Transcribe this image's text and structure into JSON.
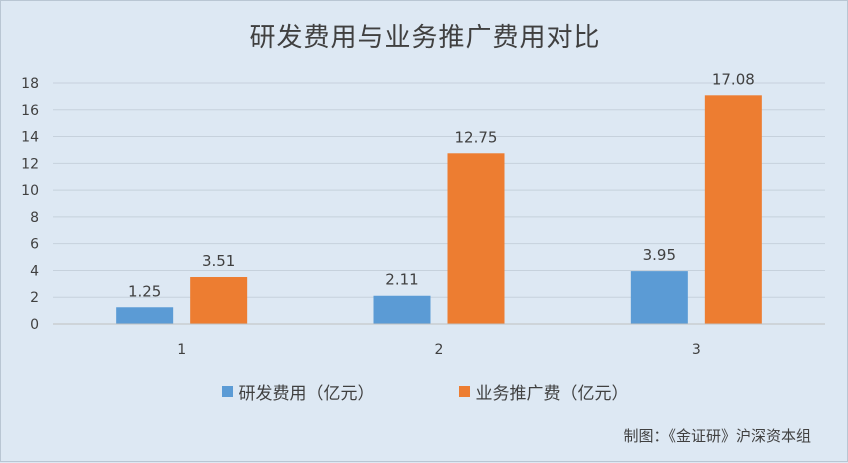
{
  "source_note": "制图：《金证研》沪深资本组",
  "chart_data": {
    "type": "bar",
    "title": "研发费用与业务推广费用对比",
    "categories": [
      "1",
      "2",
      "3"
    ],
    "series": [
      {
        "name": "研发费用（亿元）",
        "values": [
          1.25,
          2.11,
          3.95
        ],
        "color": "#5b9bd5",
        "labels": [
          "1.25",
          "2.11",
          "3.95"
        ]
      },
      {
        "name": "业务推广费（亿元）",
        "values": [
          3.51,
          12.75,
          17.08
        ],
        "color": "#ed7d31",
        "labels": [
          "3.51",
          "12.75",
          "17.08"
        ]
      }
    ],
    "ylim": [
      0,
      18
    ],
    "yticks": [
      0,
      2,
      4,
      6,
      8,
      10,
      12,
      14,
      16,
      18
    ],
    "grid": true,
    "legend_position": "bottom"
  }
}
